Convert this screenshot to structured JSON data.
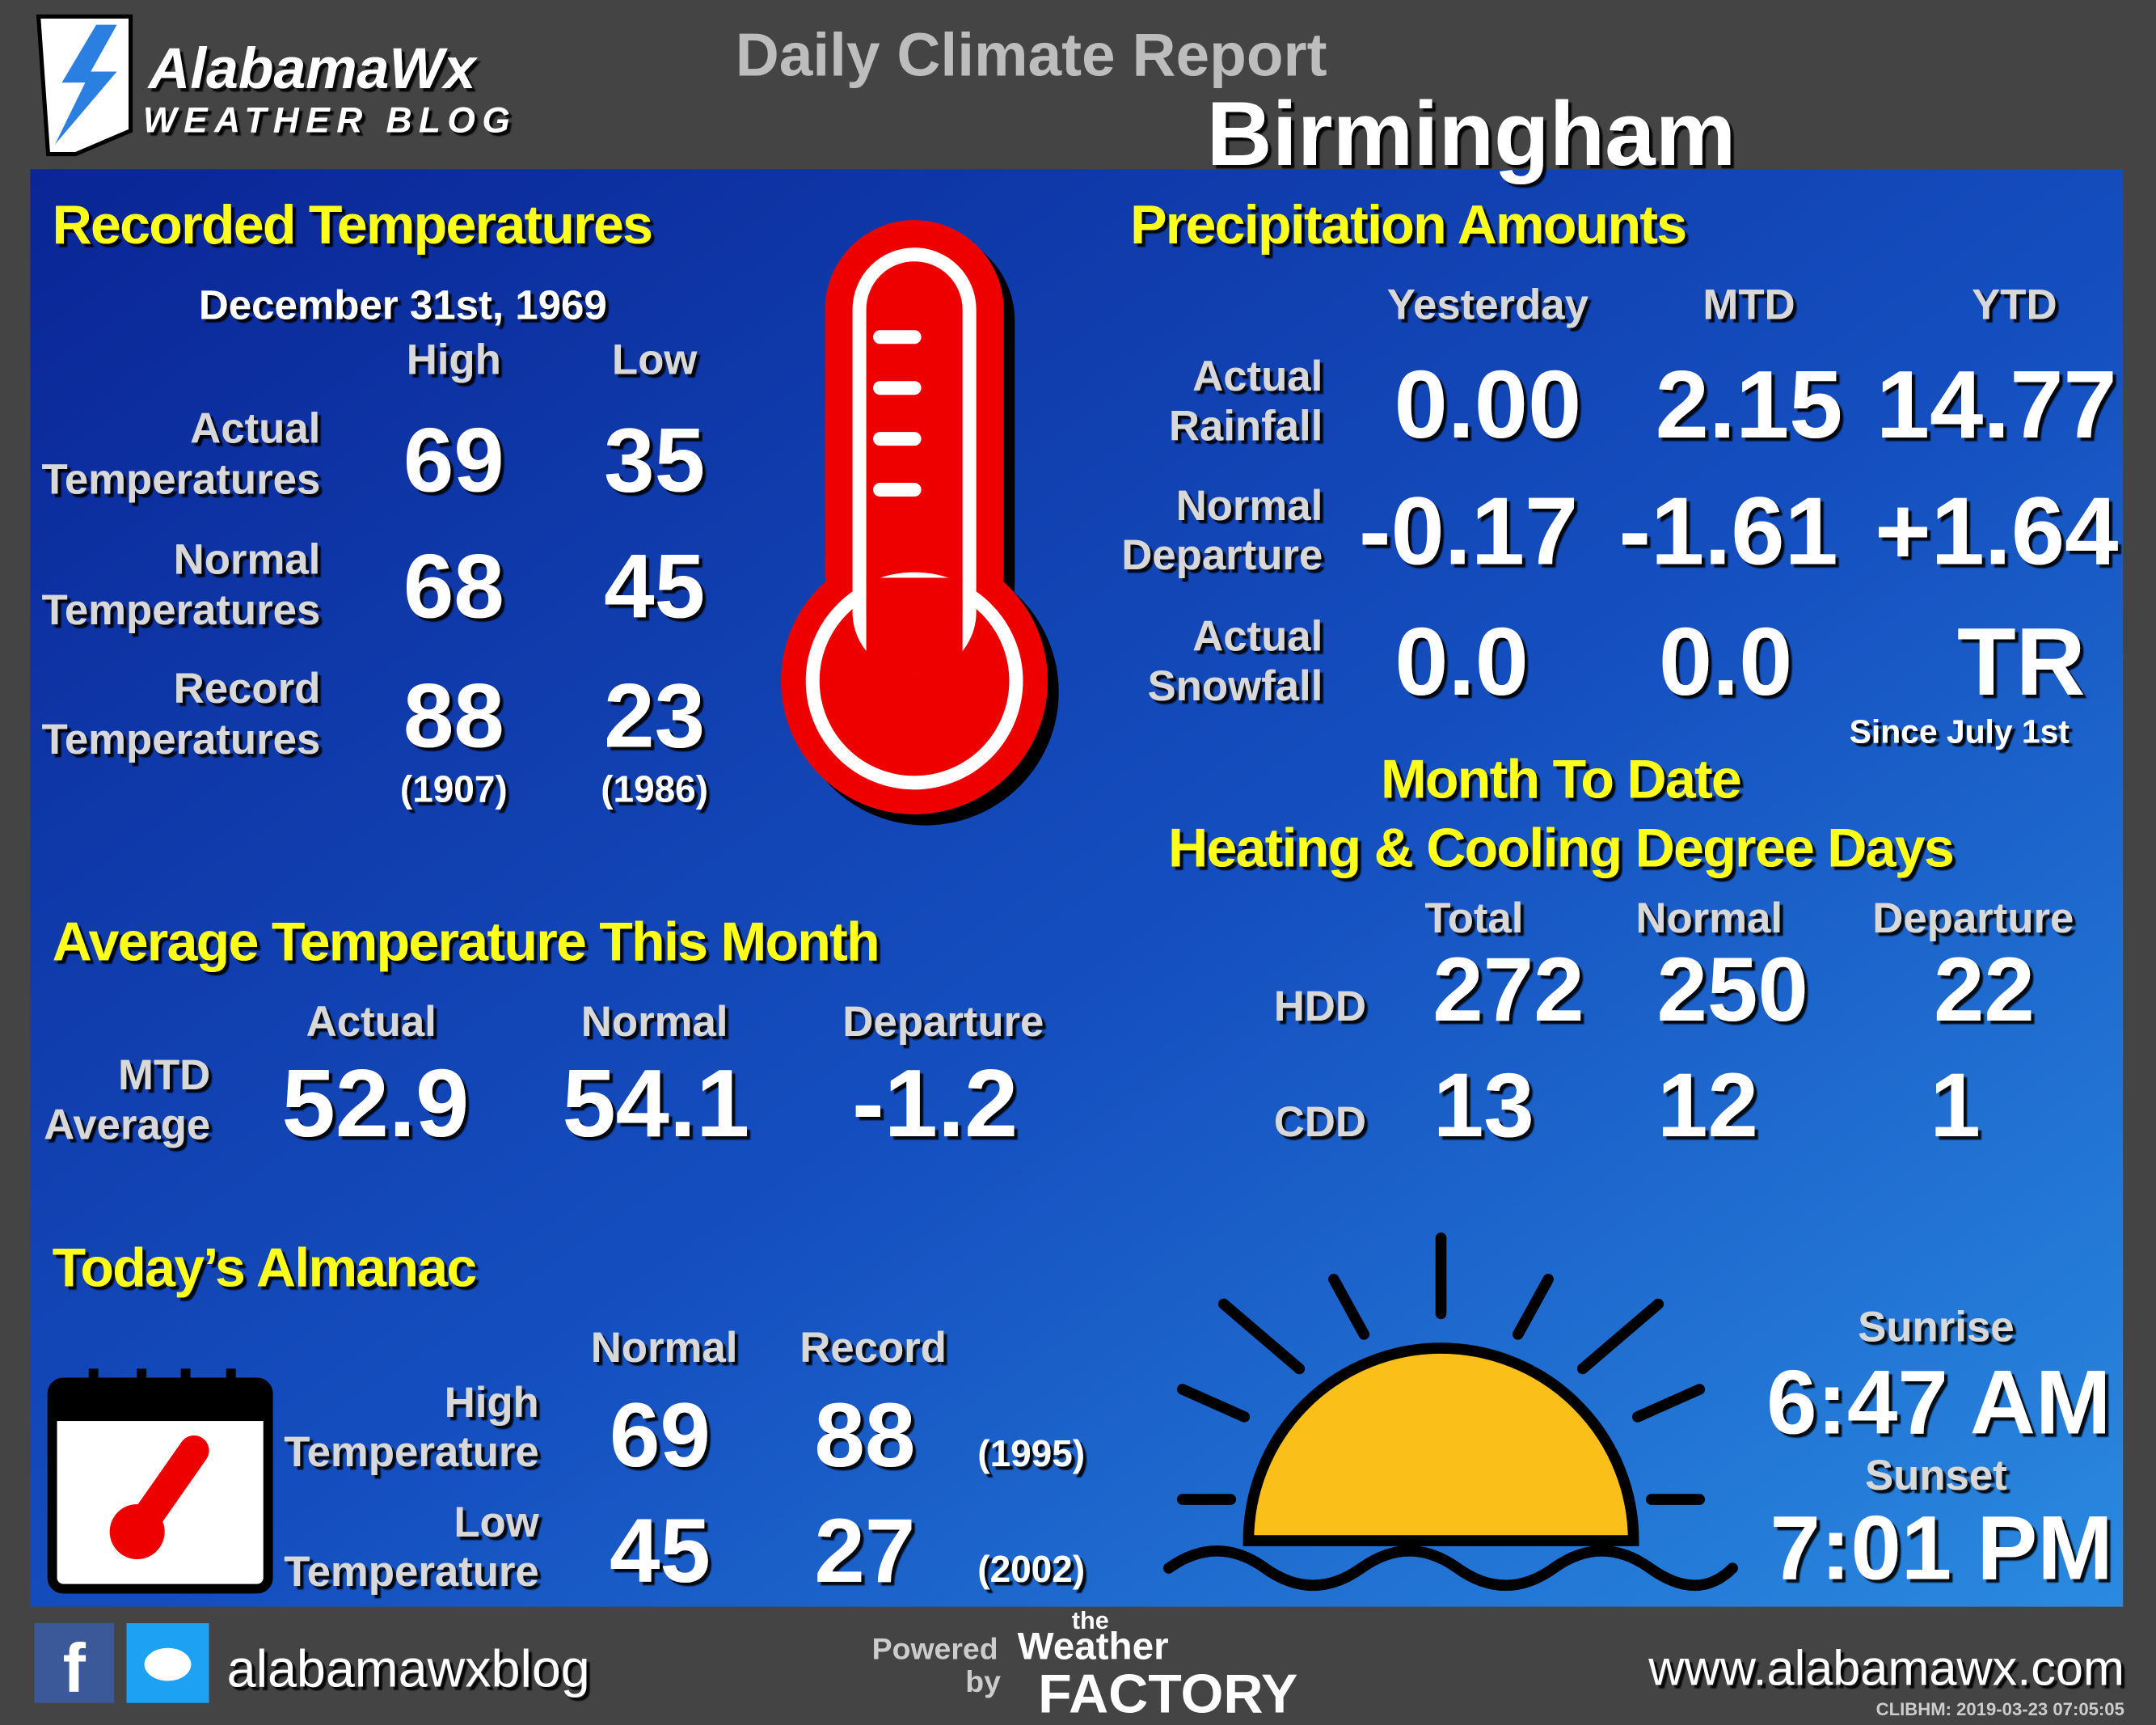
{
  "header": {
    "brand": "AlabamaWx",
    "brand_sub": "WEATHER BLOG",
    "title": "Daily Climate Report",
    "location": "Birmingham"
  },
  "recorded_temperatures": {
    "title": "Recorded Temperatures",
    "date": "December  31st, 1969",
    "columns": [
      "High",
      "Low"
    ],
    "rows": [
      {
        "label": [
          "Actual",
          "Temperatures"
        ],
        "high": "69",
        "low": "35"
      },
      {
        "label": [
          "Normal",
          "Temperatures"
        ],
        "high": "68",
        "low": "45"
      },
      {
        "label": [
          "Record",
          "Temperatures"
        ],
        "high": "88",
        "low": "23",
        "high_year": "(1907)",
        "low_year": "(1986)"
      }
    ]
  },
  "precipitation": {
    "title": "Precipitation Amounts",
    "columns": [
      "Yesterday",
      "MTD",
      "YTD"
    ],
    "rows": [
      {
        "label": [
          "Actual",
          "Rainfall"
        ],
        "values": [
          "0.00",
          "2.15",
          "14.77"
        ]
      },
      {
        "label": [
          "Normal",
          "Departure"
        ],
        "values": [
          "-0.17",
          "-1.61",
          "+1.64"
        ]
      },
      {
        "label": [
          "Actual",
          "Snowfall"
        ],
        "values": [
          "0.0",
          "0.0",
          "TR"
        ]
      }
    ],
    "note": "Since  July  1st"
  },
  "degree_days": {
    "title": [
      "Month To Date",
      "Heating & Cooling Degree Days"
    ],
    "columns": [
      "Total",
      "Normal",
      "Departure"
    ],
    "rows": [
      {
        "label": "HDD",
        "values": [
          "272",
          "250",
          "22"
        ]
      },
      {
        "label": "CDD",
        "values": [
          "13",
          "12",
          "1"
        ]
      }
    ]
  },
  "average_temperature": {
    "title": "Average Temperature This Month",
    "columns": [
      "Actual",
      "Normal",
      "Departure"
    ],
    "label": [
      "MTD",
      "Average"
    ],
    "values": [
      "52.9",
      "54.1",
      "-1.2"
    ]
  },
  "almanac": {
    "title": "Today’s Almanac",
    "columns": [
      "Normal",
      "Record"
    ],
    "rows": [
      {
        "label": [
          "High",
          "Temperature"
        ],
        "normal": "69",
        "record": "88",
        "record_year": "(1995)"
      },
      {
        "label": [
          "Low",
          "Temperature"
        ],
        "normal": "45",
        "record": "27",
        "record_year": "(2002)"
      }
    ]
  },
  "sun": {
    "sunrise_label": "Sunrise",
    "sunrise": "6:47 AM",
    "sunset_label": "Sunset",
    "sunset": "7:01 PM"
  },
  "footer": {
    "social": "alabamawxblog",
    "powered": [
      "Powered",
      "by"
    ],
    "sponsor": [
      "the",
      "Weather",
      "FACTORY"
    ],
    "website": "www.alabamawx.com",
    "stamp": "CLIBHM:  2019-03-23  07:05:05"
  }
}
